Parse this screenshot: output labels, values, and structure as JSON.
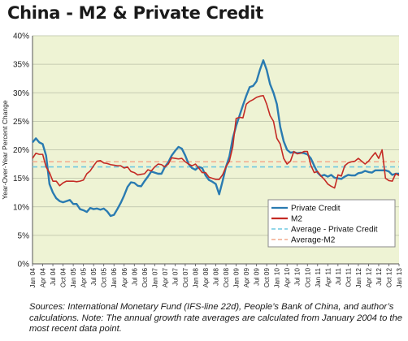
{
  "chart_data": {
    "type": "line",
    "title": "China - M2 & Private Credit",
    "ylabel": "Year-Over-Year Percent Change",
    "xlabel": "",
    "ylim": [
      0,
      40
    ],
    "yticks": [
      "0%",
      "5%",
      "10%",
      "15%",
      "20%",
      "25%",
      "30%",
      "35%",
      "40%"
    ],
    "grid": true,
    "legend_position": "right-middle",
    "background_color": "#eef3d4",
    "x_ticks": [
      "Jan 04",
      "Apr 04",
      "Jul 04",
      "Oct 04",
      "Jan 05",
      "Apr 05",
      "Jul 05",
      "Oct 05",
      "Jan 06",
      "Apr 06",
      "Jul 06",
      "Oct 06",
      "Jan 07",
      "Apr 07",
      "Jul 07",
      "Oct 07",
      "Jan 08",
      "Apr 08",
      "Jul 08",
      "Oct 08",
      "Jan 09",
      "Apr 09",
      "Jul 09",
      "Oct 09",
      "Jan 10",
      "Apr 10",
      "Jul 10",
      "Oct 10",
      "Jan 11",
      "Apr 11",
      "Jul 11",
      "Oct 11",
      "Jan 12",
      "Apr 12",
      "Jul 12",
      "Oct 12",
      "Jan 13"
    ],
    "series": [
      {
        "name": "Private Credit",
        "color": "#2a7bb1",
        "style": "solid",
        "points": [
          [
            0,
            21.3
          ],
          [
            1,
            22
          ],
          [
            2,
            21.3
          ],
          [
            3,
            21
          ],
          [
            4,
            19
          ],
          [
            5,
            14
          ],
          [
            6,
            12.5
          ],
          [
            7,
            11.5
          ],
          [
            8,
            11
          ],
          [
            9,
            10.8
          ],
          [
            10,
            11
          ],
          [
            11,
            11.2
          ],
          [
            12,
            10.5
          ],
          [
            13,
            10.5
          ],
          [
            14,
            9.6
          ],
          [
            15,
            9.4
          ],
          [
            16,
            9.1
          ],
          [
            17,
            9.8
          ],
          [
            18,
            9.6
          ],
          [
            19,
            9.7
          ],
          [
            20,
            9.5
          ],
          [
            21,
            9.7
          ],
          [
            22,
            9.2
          ],
          [
            23,
            8.4
          ],
          [
            24,
            8.6
          ],
          [
            25,
            9.6
          ],
          [
            26,
            10.7
          ],
          [
            27,
            12
          ],
          [
            28,
            13.5
          ],
          [
            29,
            14.3
          ],
          [
            30,
            14.2
          ],
          [
            31,
            13.7
          ],
          [
            32,
            13.6
          ],
          [
            33,
            14.5
          ],
          [
            34,
            15.3
          ],
          [
            35,
            16.2
          ],
          [
            36,
            16
          ],
          [
            37,
            15.8
          ],
          [
            38,
            15.8
          ],
          [
            39,
            17
          ],
          [
            40,
            17.8
          ],
          [
            41,
            19
          ],
          [
            42,
            19.8
          ],
          [
            43,
            20.5
          ],
          [
            44,
            20.2
          ],
          [
            45,
            19
          ],
          [
            46,
            17.5
          ],
          [
            47,
            16.8
          ],
          [
            48,
            16.5
          ],
          [
            49,
            17
          ],
          [
            50,
            16.8
          ],
          [
            51,
            15.5
          ],
          [
            52,
            14.7
          ],
          [
            53,
            14.4
          ],
          [
            54,
            14
          ],
          [
            55,
            12.2
          ],
          [
            56,
            14.5
          ],
          [
            57,
            17
          ],
          [
            58,
            18.8
          ],
          [
            59,
            22
          ],
          [
            60,
            24.2
          ],
          [
            61,
            26
          ],
          [
            62,
            27.8
          ],
          [
            63,
            29.5
          ],
          [
            64,
            31
          ],
          [
            65,
            31.2
          ],
          [
            66,
            32
          ],
          [
            67,
            34
          ],
          [
            68,
            35.7
          ],
          [
            69,
            34
          ],
          [
            70,
            31.5
          ],
          [
            71,
            30
          ],
          [
            72,
            28
          ],
          [
            73,
            24
          ],
          [
            74,
            21.5
          ],
          [
            75,
            20
          ],
          [
            76,
            19.5
          ],
          [
            77,
            19.6
          ],
          [
            78,
            19.4
          ],
          [
            79,
            19.5
          ],
          [
            80,
            19.4
          ],
          [
            81,
            19.2
          ],
          [
            82,
            18.5
          ],
          [
            83,
            17.2
          ],
          [
            84,
            16
          ],
          [
            85,
            15.4
          ],
          [
            86,
            15.6
          ],
          [
            87,
            15.3
          ],
          [
            88,
            15.6
          ],
          [
            89,
            15.1
          ],
          [
            90,
            15
          ],
          [
            91,
            14.9
          ],
          [
            92,
            15.3
          ],
          [
            93,
            15.6
          ],
          [
            94,
            15.5
          ],
          [
            95,
            15.5
          ],
          [
            96,
            15.9
          ],
          [
            97,
            16
          ],
          [
            98,
            16.3
          ],
          [
            99,
            16.1
          ],
          [
            100,
            16
          ],
          [
            101,
            16.4
          ],
          [
            102,
            16.4
          ],
          [
            103,
            16.4
          ],
          [
            104,
            16.4
          ],
          [
            105,
            16.2
          ],
          [
            106,
            15.6
          ],
          [
            107,
            15.8
          ],
          [
            108,
            15.8
          ]
        ]
      },
      {
        "name": "M2",
        "color": "#c42a24",
        "style": "solid",
        "points": [
          [
            0,
            18.5
          ],
          [
            1,
            19.4
          ],
          [
            2,
            19.2
          ],
          [
            3,
            19.2
          ],
          [
            4,
            17
          ],
          [
            5,
            16
          ],
          [
            6,
            14.5
          ],
          [
            7,
            14.5
          ],
          [
            8,
            13.7
          ],
          [
            9,
            14.2
          ],
          [
            10,
            14.5
          ],
          [
            11,
            14.5
          ],
          [
            12,
            14.5
          ],
          [
            13,
            14.4
          ],
          [
            14,
            14.5
          ],
          [
            15,
            14.7
          ],
          [
            16,
            15.8
          ],
          [
            17,
            16.3
          ],
          [
            18,
            17.2
          ],
          [
            19,
            18
          ],
          [
            20,
            18.1
          ],
          [
            21,
            17.7
          ],
          [
            22,
            17.6
          ],
          [
            23,
            17.4
          ],
          [
            24,
            17.3
          ],
          [
            25,
            17.2
          ],
          [
            26,
            17.2
          ],
          [
            27,
            16.8
          ],
          [
            28,
            17
          ],
          [
            29,
            16.2
          ],
          [
            30,
            16
          ],
          [
            31,
            15.6
          ],
          [
            32,
            15.7
          ],
          [
            33,
            15.8
          ],
          [
            34,
            16.5
          ],
          [
            35,
            16.3
          ],
          [
            36,
            17
          ],
          [
            37,
            17.5
          ],
          [
            38,
            17.4
          ],
          [
            39,
            17
          ],
          [
            40,
            17.5
          ],
          [
            41,
            18.6
          ],
          [
            42,
            18.5
          ],
          [
            43,
            18.4
          ],
          [
            44,
            18.5
          ],
          [
            45,
            17.9
          ],
          [
            46,
            17.5
          ],
          [
            47,
            17.2
          ],
          [
            48,
            17.5
          ],
          [
            49,
            16.8
          ],
          [
            50,
            16
          ],
          [
            51,
            16
          ],
          [
            52,
            15.2
          ],
          [
            53,
            15
          ],
          [
            54,
            14.8
          ],
          [
            55,
            14.8
          ],
          [
            56,
            15.6
          ],
          [
            57,
            17
          ],
          [
            58,
            18
          ],
          [
            59,
            20.5
          ],
          [
            60,
            25.5
          ],
          [
            61,
            25.7
          ],
          [
            62,
            25.6
          ],
          [
            63,
            28
          ],
          [
            64,
            28.5
          ],
          [
            65,
            28.8
          ],
          [
            66,
            29.2
          ],
          [
            67,
            29.4
          ],
          [
            68,
            29.5
          ],
          [
            69,
            28
          ],
          [
            70,
            26
          ],
          [
            71,
            25
          ],
          [
            72,
            22
          ],
          [
            73,
            21
          ],
          [
            74,
            18.5
          ],
          [
            75,
            17.5
          ],
          [
            76,
            18
          ],
          [
            77,
            19.7
          ],
          [
            78,
            19.3
          ],
          [
            79,
            19.4
          ],
          [
            80,
            19.7
          ],
          [
            81,
            19.7
          ],
          [
            82,
            17.3
          ],
          [
            83,
            16
          ],
          [
            84,
            16.2
          ],
          [
            85,
            15.4
          ],
          [
            86,
            14.8
          ],
          [
            87,
            14
          ],
          [
            88,
            13.6
          ],
          [
            89,
            13.3
          ],
          [
            90,
            15.6
          ],
          [
            91,
            15.4
          ],
          [
            92,
            17.2
          ],
          [
            93,
            17.7
          ],
          [
            94,
            17.9
          ],
          [
            95,
            18
          ],
          [
            96,
            18.5
          ],
          [
            97,
            18
          ],
          [
            98,
            17.5
          ],
          [
            99,
            18
          ],
          [
            100,
            18.8
          ],
          [
            101,
            19.5
          ],
          [
            102,
            18.5
          ],
          [
            103,
            20
          ],
          [
            104,
            15
          ],
          [
            105,
            14.6
          ],
          [
            106,
            14.5
          ],
          [
            107,
            15.8
          ],
          [
            108,
            15.5
          ]
        ]
      },
      {
        "name": "Average - Private Credit",
        "color": "#6ec9e0",
        "style": "dashed",
        "value": 17
      },
      {
        "name": "Average-M2",
        "color": "#f3a98c",
        "style": "dashed",
        "value": 17.9
      }
    ]
  },
  "source_note": "Sources: International Monetary Fund (IFS-line 22d), People’s Bank of China, and author’s calculations. Note: The annual growth rate averages are calculated from January 2004 to the most recent data point."
}
